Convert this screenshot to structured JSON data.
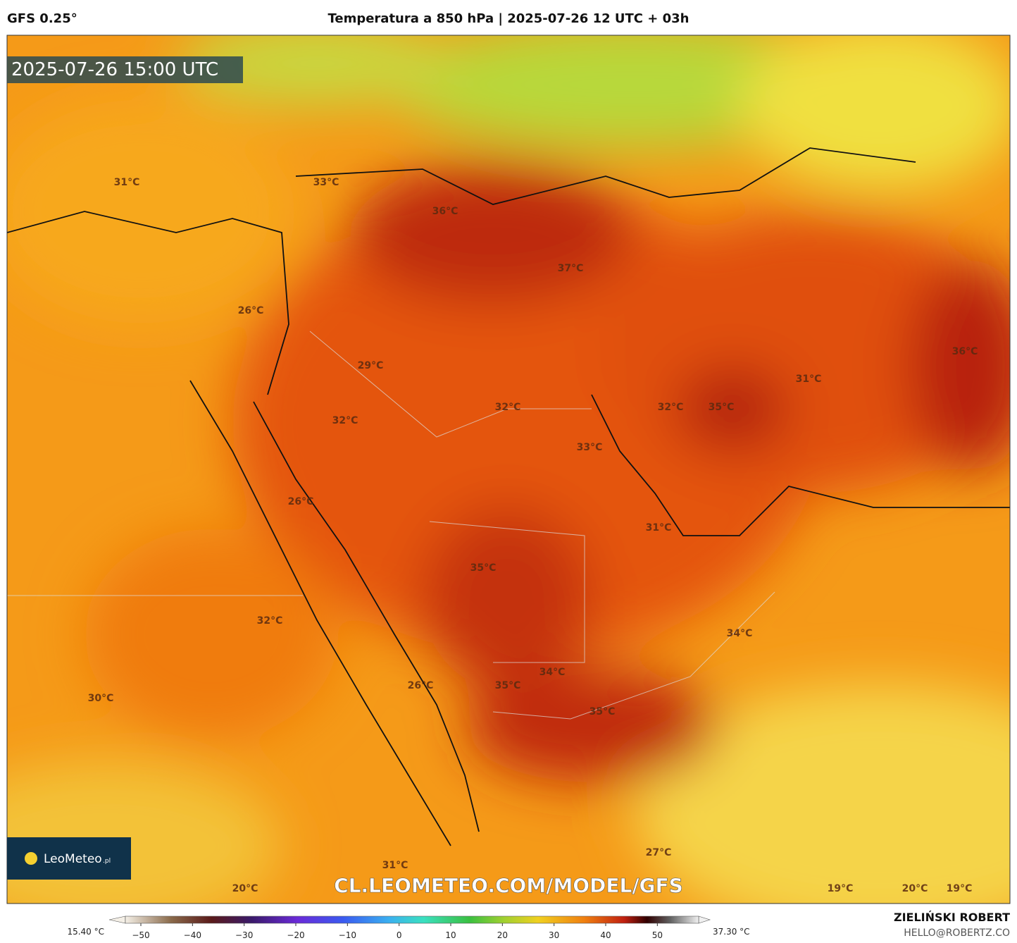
{
  "header": {
    "model": "GFS 0.25°",
    "title": "Temperatura a 850 hPa | 2025-07-26 12 UTC + 03h"
  },
  "map": {
    "timestamp": "2025-07-26 15:00 UTC",
    "labels": [
      "31°C",
      "33°C",
      "36°C",
      "37°C",
      "26°C",
      "36°C",
      "29°C",
      "31°C",
      "32°C",
      "32°C",
      "35°C",
      "32°C",
      "33°C",
      "26°C",
      "31°C",
      "35°C",
      "32°C",
      "34°C",
      "34°C",
      "35°C",
      "26°C",
      "30°C",
      "35°C",
      "27°C",
      "31°C",
      "20°C",
      "19°C",
      "20°C",
      "19°C"
    ],
    "watermark": "CL.LEOMETEO.COM/MODEL/GFS",
    "logo": "LeoMeteo",
    "logo_suffix": ".pl"
  },
  "colorbar": {
    "min_label": "15.40 °C",
    "max_label": "37.30 °C",
    "xlim": [
      -53,
      58
    ],
    "xticks": [
      {
        "value": -50,
        "label": "−50"
      },
      {
        "value": -40,
        "label": "−40"
      },
      {
        "value": -30,
        "label": "−30"
      },
      {
        "value": -20,
        "label": "−20"
      },
      {
        "value": -10,
        "label": "−10"
      },
      0,
      10,
      20,
      30,
      40,
      50
    ]
  },
  "footer": {
    "author": "ZIELIŃSKI ROBERT",
    "contact": "HELLO@ROBERTZ.CO"
  }
}
